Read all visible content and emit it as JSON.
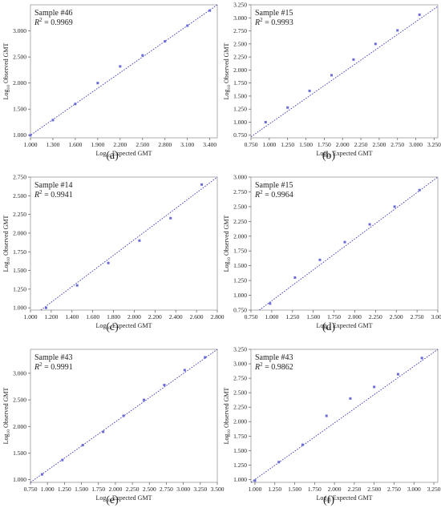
{
  "chart_data": [
    {
      "type": "scatter",
      "panel": "(a)",
      "sample": "Sample #46",
      "r2": "= 0.9969",
      "xlabel": "Log10 Expected GMT",
      "ylabel": "Log10 Observed GMT",
      "xlim": [
        1.0,
        3.5
      ],
      "ylim": [
        0.95,
        3.5
      ],
      "xticks": [
        "1.000",
        "1.300",
        "1.600",
        "1.900",
        "2.200",
        "2.500",
        "2.800",
        "3.100",
        "3.400"
      ],
      "yticks": [
        "1.000",
        "1.500",
        "2.000",
        "2.500",
        "3.000"
      ],
      "x": [
        1.0,
        1.3,
        1.6,
        1.9,
        2.2,
        2.5,
        2.8,
        3.1,
        3.4
      ],
      "y": [
        1.0,
        1.29,
        1.6,
        2.0,
        2.32,
        2.53,
        2.8,
        3.1,
        3.39
      ],
      "fit": [
        [
          0.98,
          0.98
        ],
        [
          3.5,
          3.5
        ]
      ]
    },
    {
      "type": "scatter",
      "panel": "(b)",
      "sample": "Sample #15",
      "r2": "= 0.9993",
      "xlabel": "Log10 Expected GMT",
      "ylabel": "Log10 Observed GMT",
      "xlim": [
        0.75,
        3.3
      ],
      "ylim": [
        0.7,
        3.25
      ],
      "xticks": [
        "0.750",
        "1.000",
        "1.250",
        "1.500",
        "1.750",
        "2.000",
        "2.250",
        "2.500",
        "2.750",
        "3.000",
        "3.250"
      ],
      "yticks": [
        "0.750",
        "1.000",
        "1.250",
        "1.500",
        "1.750",
        "2.000",
        "2.250",
        "2.500",
        "2.750",
        "3.000",
        "3.250"
      ],
      "x": [
        0.95,
        1.25,
        1.55,
        1.85,
        2.15,
        2.45,
        2.75,
        3.05
      ],
      "y": [
        1.0,
        1.28,
        1.6,
        1.9,
        2.2,
        2.5,
        2.76,
        3.06
      ],
      "fit": [
        [
          0.75,
          0.72
        ],
        [
          3.3,
          3.22
        ]
      ]
    },
    {
      "type": "scatter",
      "panel": "(c)",
      "sample": "Sample #14",
      "r2": "= 0.9941",
      "xlabel": "Log10 Expected GMT",
      "ylabel": "Log10 Observed GMT",
      "xlim": [
        1.0,
        2.8
      ],
      "ylim": [
        0.97,
        2.75
      ],
      "xticks": [
        "1.000",
        "1.200",
        "1.400",
        "1.600",
        "1.800",
        "2.000",
        "2.200",
        "2.400",
        "2.600",
        "2.800"
      ],
      "yticks": [
        "1.000",
        "1.250",
        "1.500",
        "1.750",
        "2.000",
        "2.250",
        "2.500",
        "2.750"
      ],
      "x": [
        1.15,
        1.45,
        1.75,
        2.05,
        2.35,
        2.65
      ],
      "y": [
        1.0,
        1.3,
        1.6,
        1.9,
        2.2,
        2.65
      ],
      "fit": [
        [
          1.1,
          0.97
        ],
        [
          2.8,
          2.75
        ]
      ]
    },
    {
      "type": "scatter",
      "panel": "(d)",
      "sample": "Sample #15",
      "r2": "= 0.9964",
      "xlabel": "Log10 Expected GMT",
      "ylabel": "Log10 Observed GMT",
      "xlim": [
        0.75,
        3.0
      ],
      "ylim": [
        0.75,
        3.0
      ],
      "xticks": [
        "0.750",
        "1.000",
        "1.250",
        "1.500",
        "1.750",
        "2.000",
        "2.250",
        "2.500",
        "2.750",
        "3.000"
      ],
      "yticks": [
        "0.750",
        "1.000",
        "1.250",
        "1.500",
        "1.750",
        "2.000",
        "2.250",
        "2.500",
        "2.750",
        "3.000"
      ],
      "x": [
        0.98,
        1.28,
        1.58,
        1.88,
        2.18,
        2.48,
        2.78
      ],
      "y": [
        0.86,
        1.3,
        1.6,
        1.9,
        2.2,
        2.5,
        2.78
      ],
      "fit": [
        [
          0.85,
          0.75
        ],
        [
          3.0,
          3.0
        ]
      ]
    },
    {
      "type": "scatter",
      "panel": "(e)",
      "sample": "Sample #43",
      "r2": "= 0.9991",
      "xlabel": "Log10 Expected GMT",
      "ylabel": "Log10 Observed GMT",
      "xlim": [
        0.75,
        3.5
      ],
      "ylim": [
        0.95,
        3.45
      ],
      "xticks": [
        "0.750",
        "1.000",
        "1.250",
        "1.500",
        "1.750",
        "2.000",
        "2.250",
        "2.500",
        "2.750",
        "3.000",
        "3.250",
        "3.500"
      ],
      "yticks": [
        "1.000",
        "1.500",
        "2.000",
        "2.500",
        "3.000"
      ],
      "x": [
        0.92,
        1.22,
        1.52,
        1.82,
        2.12,
        2.42,
        2.72,
        3.02,
        3.32
      ],
      "y": [
        1.1,
        1.37,
        1.65,
        1.9,
        2.2,
        2.5,
        2.78,
        3.06,
        3.3
      ],
      "fit": [
        [
          0.75,
          0.95
        ],
        [
          3.5,
          3.45
        ]
      ]
    },
    {
      "type": "scatter",
      "panel": "(f)",
      "sample": "Sample #43",
      "r2": "= 0.9862",
      "xlabel": "Log10 Expected GMT",
      "ylabel": "Log10 Observed GMT",
      "xlim": [
        0.95,
        3.3
      ],
      "ylim": [
        0.95,
        3.25
      ],
      "xticks": [
        "1.000",
        "1.250",
        "1.500",
        "1.750",
        "2.000",
        "2.250",
        "2.500",
        "2.750",
        "3.000",
        "3.250"
      ],
      "yticks": [
        "1.000",
        "1.250",
        "1.500",
        "1.750",
        "2.000",
        "2.250",
        "2.500",
        "2.750",
        "3.000",
        "3.250"
      ],
      "x": [
        1.0,
        1.3,
        1.6,
        1.9,
        2.2,
        2.5,
        2.8,
        3.1
      ],
      "y": [
        0.98,
        1.3,
        1.6,
        2.1,
        2.4,
        2.6,
        2.82,
        3.1
      ],
      "fit": [
        [
          0.95,
          0.95
        ],
        [
          3.3,
          3.25
        ]
      ]
    }
  ],
  "colors": {
    "marker": "#6b6bd8",
    "fit_line": "#3a3ab8",
    "axis": "#555555",
    "frame": "#999999"
  }
}
